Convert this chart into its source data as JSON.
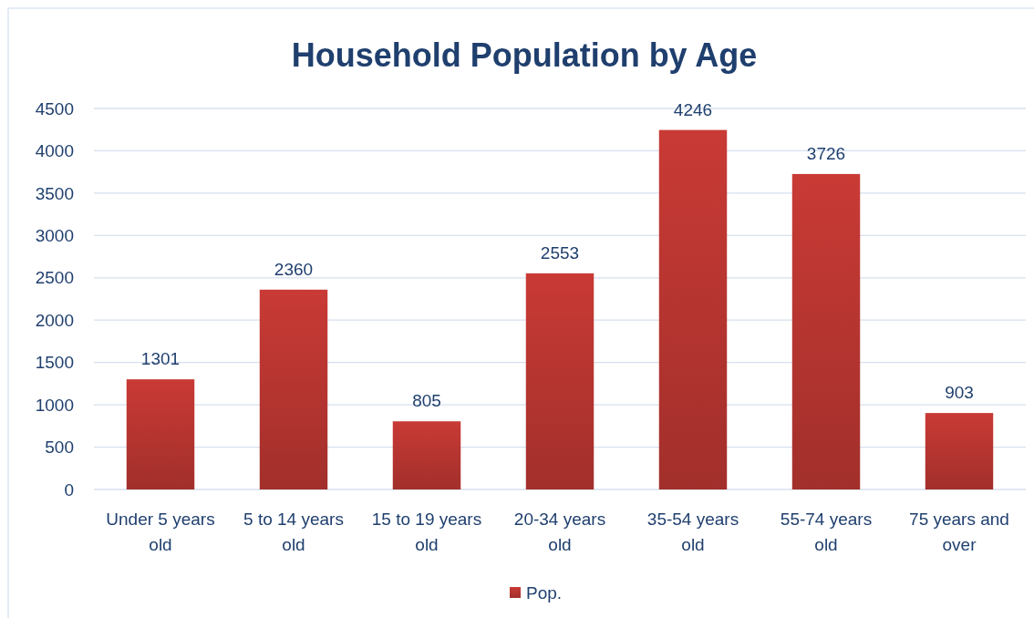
{
  "chart_data": {
    "type": "bar",
    "title": "Household Population by Age",
    "categories": [
      "Under 5 years old",
      "5 to 14 years old",
      "15 to 19 years old",
      "20-34 years old",
      "35-54 years old",
      "55-74 years old",
      "75 years and over"
    ],
    "series": [
      {
        "name": "Pop.",
        "color": "#c93a35",
        "values": [
          1301,
          2360,
          805,
          2553,
          4246,
          3726,
          903
        ]
      }
    ],
    "ylim": [
      0,
      4500
    ],
    "yticks": [
      0,
      500,
      1000,
      1500,
      2000,
      2500,
      3000,
      3500,
      4000,
      4500
    ],
    "grid": "y",
    "data_labels": true,
    "legend": "bottom"
  }
}
